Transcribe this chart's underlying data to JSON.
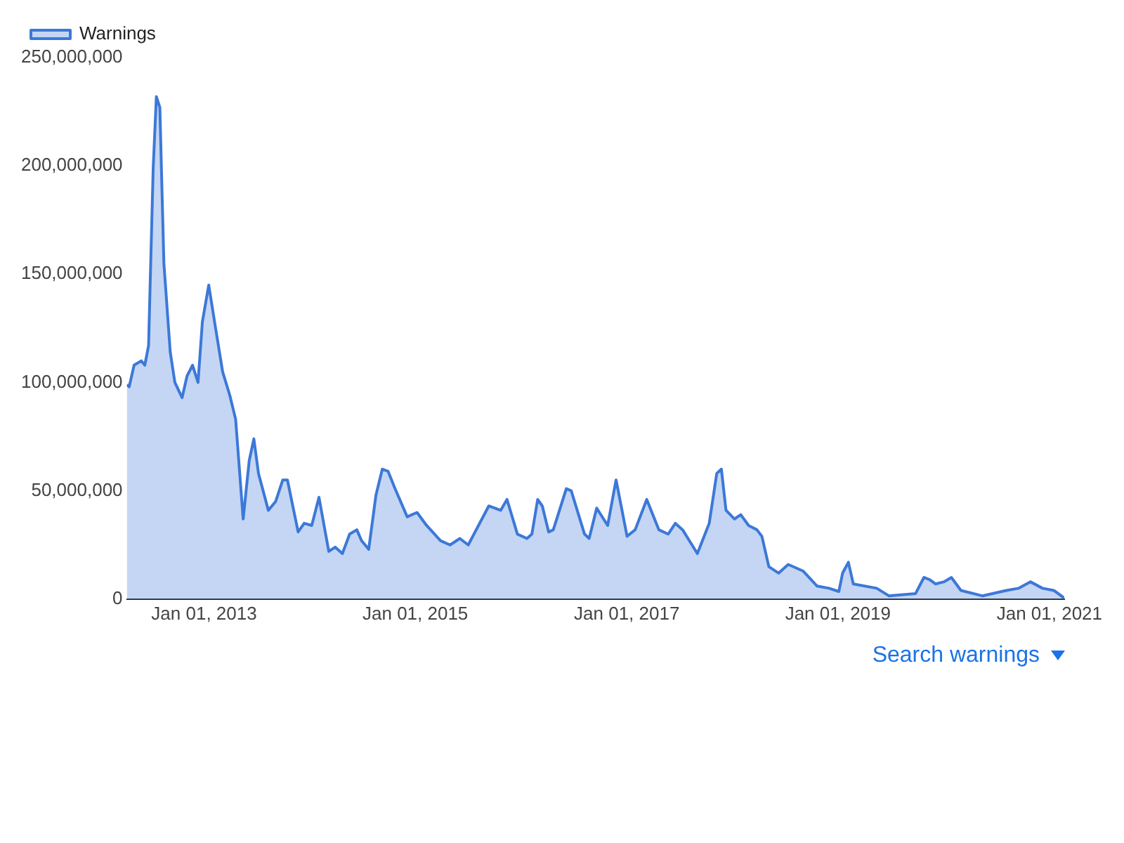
{
  "chart_data": {
    "type": "area",
    "legend": "top left",
    "grid": false,
    "x": [
      "2012-04-09",
      "2012-04-17",
      "2012-05-04",
      "2012-05-29",
      "2012-06-10",
      "2012-06-23",
      "2012-07-09",
      "2012-07-20",
      "2012-08-01",
      "2012-08-15",
      "2012-09-06",
      "2012-09-22",
      "2012-10-17",
      "2012-11-03",
      "2012-11-22",
      "2012-12-11",
      "2012-12-26",
      "2013-01-17",
      "2013-02-11",
      "2013-03-06",
      "2013-03-31",
      "2013-04-20",
      "2013-05-16",
      "2013-06-06",
      "2013-06-22",
      "2013-07-08",
      "2013-08-11",
      "2013-09-05",
      "2013-09-30",
      "2013-10-16",
      "2013-11-22",
      "2013-12-13",
      "2014-01-08",
      "2014-02-02",
      "2014-03-08",
      "2014-03-30",
      "2014-04-24",
      "2014-05-19",
      "2014-06-13",
      "2014-06-29",
      "2014-07-24",
      "2014-08-18",
      "2014-09-09",
      "2014-09-29",
      "2014-10-23",
      "2014-12-04",
      "2015-01-07",
      "2015-02-09",
      "2015-03-29",
      "2015-05-01",
      "2015-06-04",
      "2015-07-03",
      "2015-09-12",
      "2015-10-23",
      "2015-11-14",
      "2015-12-20",
      "2016-01-22",
      "2016-02-08",
      "2016-02-28",
      "2016-03-15",
      "2016-04-06",
      "2016-04-22",
      "2016-06-06",
      "2016-06-23",
      "2016-08-08",
      "2016-08-24",
      "2016-09-19",
      "2016-10-27",
      "2016-11-25",
      "2017-01-02",
      "2017-01-30",
      "2017-03-11",
      "2017-04-22",
      "2017-05-24",
      "2017-06-18",
      "2017-07-13",
      "2017-09-02",
      "2017-10-13",
      "2017-11-08",
      "2017-11-24",
      "2017-12-10",
      "2018-01-08",
      "2018-01-30",
      "2018-02-26",
      "2018-03-27",
      "2018-04-13",
      "2018-05-07",
      "2018-06-10",
      "2018-07-13",
      "2018-09-02",
      "2018-10-21",
      "2018-12-01",
      "2019-01-04",
      "2019-01-17",
      "2019-02-06",
      "2019-02-23",
      "2019-05-15",
      "2019-06-26",
      "2019-09-26",
      "2019-10-25",
      "2019-11-14",
      "2019-12-04",
      "2020-01-03",
      "2020-01-28",
      "2020-03-01",
      "2020-05-14",
      "2020-08-05",
      "2020-09-16",
      "2020-10-27",
      "2020-12-08",
      "2021-01-16",
      "2021-02-21"
    ],
    "series": [
      {
        "name": "Warnings",
        "color": "#3c78d8",
        "values": [
          99000000,
          98000000,
          108000000,
          110000000,
          108000000,
          117000000,
          199000000,
          232000000,
          227000000,
          155000000,
          114000000,
          100000000,
          93000000,
          103000000,
          108000000,
          100000000,
          128000000,
          145000000,
          124000000,
          105000000,
          94000000,
          83000000,
          37000000,
          64000000,
          74000000,
          58000000,
          41000000,
          45000000,
          55000000,
          55000000,
          31000000,
          35000000,
          34000000,
          47000000,
          22000000,
          24000000,
          21000000,
          30000000,
          32000000,
          27000000,
          23000000,
          48000000,
          60000000,
          59000000,
          51000000,
          38000000,
          40000000,
          34000000,
          27000000,
          25000000,
          28000000,
          25000000,
          43000000,
          41000000,
          46000000,
          30000000,
          28000000,
          30000000,
          46000000,
          43000000,
          31000000,
          32000000,
          51000000,
          50000000,
          30000000,
          28000000,
          42000000,
          34000000,
          55000000,
          29000000,
          32000000,
          46000000,
          32000000,
          30000000,
          35000000,
          32000000,
          21000000,
          35000000,
          58000000,
          60000000,
          41000000,
          37000000,
          39000000,
          34000000,
          32000000,
          29000000,
          15000000,
          12000000,
          16000000,
          13000000,
          6000000,
          5000000,
          3500000,
          12000000,
          17000000,
          7000000,
          5000000,
          1500000,
          2500000,
          10000000,
          9000000,
          7000000,
          8000000,
          10000000,
          4000000,
          1500000,
          4000000,
          5000000,
          8000000,
          5000000,
          4000000,
          500000
        ]
      }
    ],
    "xlim": [
      "2012-04-09",
      "2021-02-21"
    ],
    "xticks": [
      {
        "value": "2013-01-01",
        "label": "Jan 01, 2013"
      },
      {
        "value": "2015-01-01",
        "label": "Jan 01, 2015"
      },
      {
        "value": "2017-01-01",
        "label": "Jan 01, 2017"
      },
      {
        "value": "2019-01-01",
        "label": "Jan 01, 2019"
      },
      {
        "value": "2021-01-01",
        "label": "Jan 01, 2021"
      }
    ],
    "ylim": [
      0,
      250000000
    ],
    "yticks": [
      0,
      {
        "value": 50000000,
        "label": "50,000,000"
      },
      {
        "value": 100000000,
        "label": "100,000,000"
      },
      {
        "value": 150000000,
        "label": "150,000,000"
      },
      {
        "value": 200000000,
        "label": "200,000,000"
      },
      {
        "value": 250000000,
        "label": "250,000,000"
      }
    ],
    "annotations": [
      "Search warnings"
    ]
  }
}
